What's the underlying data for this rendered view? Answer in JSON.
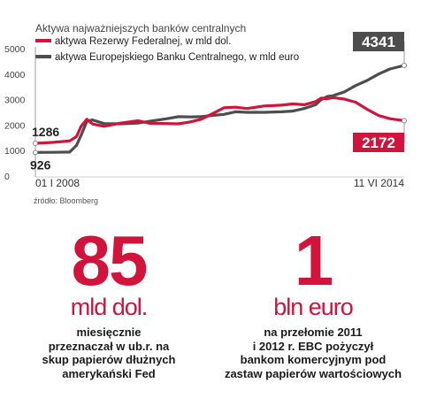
{
  "chart_data": {
    "type": "line",
    "title": "Aktywa najważniejszych banków centralnych",
    "source": "źródło: Bloomberg",
    "ylim": [
      0,
      5000
    ],
    "yticks": [
      0,
      1000,
      2000,
      3000,
      4000,
      5000
    ],
    "x_start_label": "01 I 2008",
    "x_end_label": "11 VI 2014",
    "xlim": [
      2008.0,
      2014.45
    ],
    "grid": false,
    "legend_position": "top-left",
    "colors": {
      "fed": "#d2143c",
      "ecb": "#4d4d4d"
    },
    "series": [
      {
        "name": "aktywa Rezerwy Federalnej, w mld dol.",
        "color": "#d2143c",
        "start_label": "1286",
        "end_label": "2172",
        "x": [
          2008.0,
          2008.3,
          2008.6,
          2008.72,
          2008.8,
          2008.9,
          2009.0,
          2009.2,
          2009.5,
          2009.8,
          2010.0,
          2010.3,
          2010.5,
          2010.7,
          2010.9,
          2011.1,
          2011.3,
          2011.5,
          2011.7,
          2012.0,
          2012.3,
          2012.5,
          2012.7,
          2012.9,
          2013.0,
          2013.1,
          2013.2,
          2013.4,
          2013.6,
          2013.8,
          2014.0,
          2014.2,
          2014.45
        ],
        "values": [
          1286,
          1320,
          1380,
          1550,
          1950,
          2230,
          2040,
          1950,
          2080,
          2170,
          2070,
          2060,
          2050,
          2120,
          2230,
          2450,
          2680,
          2700,
          2650,
          2750,
          2780,
          2830,
          2800,
          2920,
          3060,
          3030,
          3080,
          3020,
          2900,
          2620,
          2380,
          2250,
          2172
        ]
      },
      {
        "name": "aktywa Europejskiego Banku Centralnego, w mld euro",
        "color": "#4d4d4d",
        "start_label": "926",
        "end_label": "4341",
        "x": [
          2008.0,
          2008.3,
          2008.6,
          2008.72,
          2008.8,
          2008.9,
          2009.0,
          2009.2,
          2009.5,
          2009.8,
          2010.0,
          2010.3,
          2010.5,
          2010.7,
          2010.9,
          2011.1,
          2011.3,
          2011.5,
          2011.7,
          2012.0,
          2012.3,
          2012.5,
          2012.7,
          2012.9,
          2013.0,
          2013.1,
          2013.2,
          2013.4,
          2013.6,
          2013.8,
          2014.0,
          2014.2,
          2014.45
        ],
        "values": [
          926,
          930,
          940,
          1200,
          1600,
          2150,
          2200,
          2060,
          2050,
          2080,
          2150,
          2250,
          2330,
          2320,
          2330,
          2380,
          2420,
          2520,
          2500,
          2500,
          2520,
          2550,
          2650,
          2800,
          3000,
          3120,
          3150,
          3300,
          3550,
          3750,
          4000,
          4200,
          4341
        ]
      }
    ]
  },
  "stats": [
    {
      "big": "85",
      "unit": "mld dol.",
      "lines": [
        "miesięcznie",
        "przeznaczał w ub.r. na",
        "skup papierów dłużnych",
        "amerykański Fed"
      ]
    },
    {
      "big": "1",
      "unit": "bln euro",
      "lines": [
        "na przełomie 2011",
        "i 2012 r. EBC pożyczył",
        "bankom komercyjnym pod",
        "zastaw papierów wartościowych"
      ]
    }
  ]
}
